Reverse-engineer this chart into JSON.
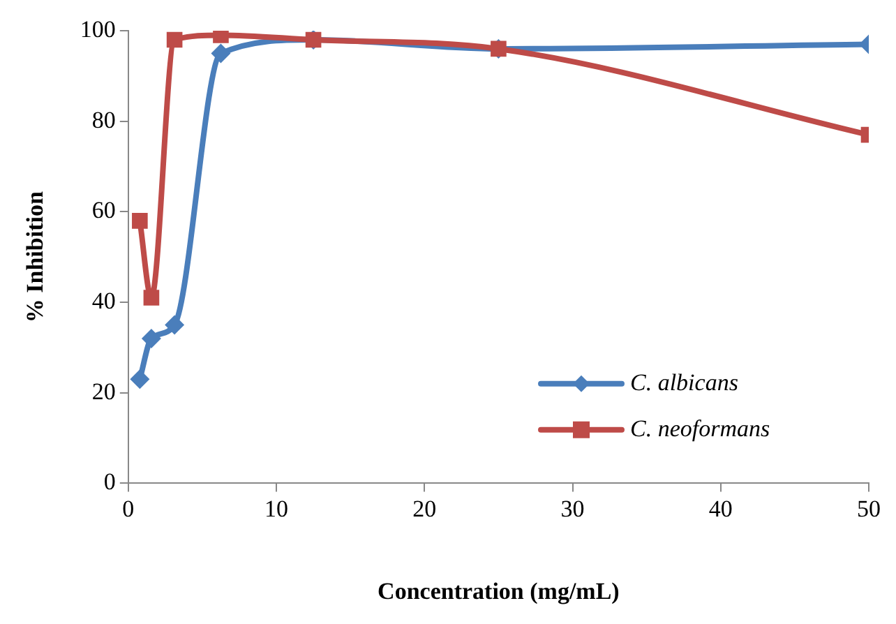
{
  "chart_data": {
    "type": "line",
    "xlabel": "Concentration (mg/mL)",
    "ylabel": "% Inhibition",
    "x": [
      0.78,
      1.56,
      3.125,
      6.25,
      12.5,
      25,
      50
    ],
    "series": [
      {
        "name": "C. albicans",
        "color": "#4a7ebb",
        "marker": "diamond",
        "values": [
          23,
          32,
          35,
          95,
          98,
          96,
          97
        ]
      },
      {
        "name": "C. neoformans",
        "color": "#be4b48",
        "marker": "square",
        "values": [
          58,
          41,
          98,
          99,
          98,
          96,
          77
        ]
      }
    ],
    "xlim": [
      0,
      50
    ],
    "xticks": [
      0,
      10,
      20,
      30,
      40,
      50
    ],
    "ylim": [
      0,
      100
    ],
    "yticks": [
      0,
      20,
      40,
      60,
      80,
      100
    ],
    "grid": false,
    "legend": "right",
    "line_style": "solid"
  }
}
